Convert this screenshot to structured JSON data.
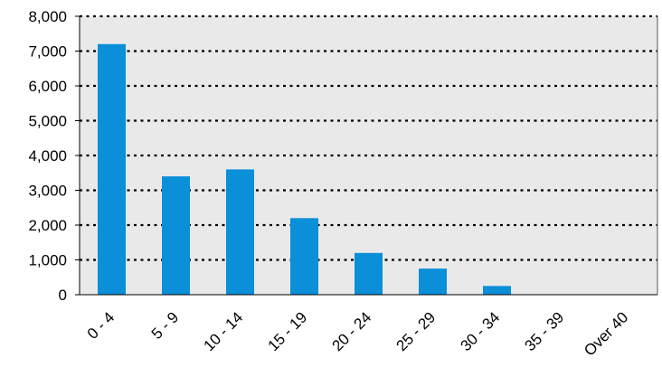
{
  "chart_data": {
    "type": "bar",
    "categories": [
      "0 - 4",
      "5 - 9",
      "10 - 14",
      "15 - 19",
      "20 - 24",
      "25 - 29",
      "30 - 34",
      "35 - 39",
      "Over 40"
    ],
    "values": [
      7200,
      3400,
      3600,
      2200,
      1200,
      750,
      250,
      0,
      0
    ],
    "ylim": [
      0,
      8000
    ],
    "yticks": [
      0,
      1000,
      2000,
      3000,
      4000,
      5000,
      6000,
      7000,
      8000
    ],
    "ytick_labels": [
      "0",
      "1,000",
      "2,000",
      "3,000",
      "4,000",
      "5,000",
      "6,000",
      "7,000",
      "8,000"
    ],
    "grid": "horizontal-dotted",
    "legend": "none",
    "colors": {
      "bar": "#0a8fd8",
      "plot_background": "#e9e9e9",
      "grid": "#000000",
      "axis": "#000000"
    }
  }
}
